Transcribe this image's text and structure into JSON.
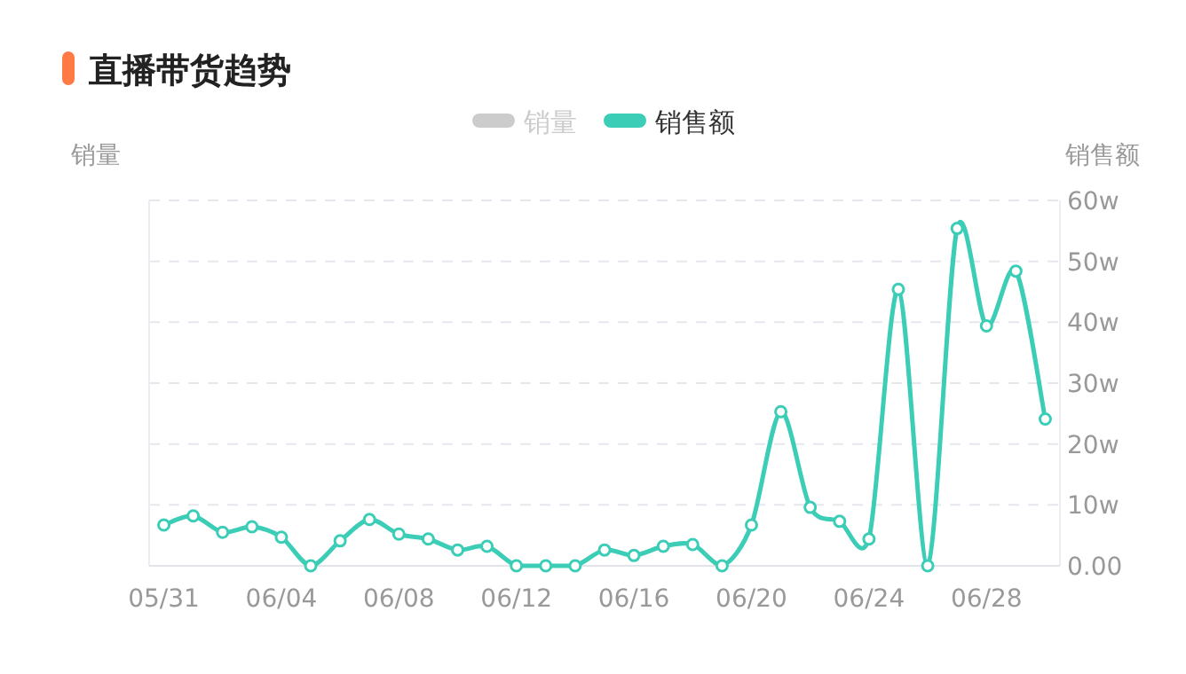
{
  "chart_data": {
    "type": "line",
    "title": "直播带货趋势",
    "ylabel": "销量",
    "y2label": "销售额",
    "categories": [
      "05/31",
      null,
      null,
      null,
      "06/04",
      null,
      null,
      null,
      "06/08",
      null,
      null,
      null,
      "06/12",
      null,
      null,
      null,
      "06/16",
      null,
      null,
      null,
      "06/20",
      null,
      null,
      null,
      "06/24",
      null,
      null,
      null,
      "06/28",
      null,
      null
    ],
    "series": [
      {
        "name": "销量",
        "color": "#cccccc",
        "values": [
          null,
          null,
          null,
          null,
          null,
          null,
          null,
          null,
          null,
          null,
          null,
          null,
          null,
          null,
          null,
          null,
          null,
          null,
          null,
          null,
          null,
          null,
          null,
          null,
          null,
          null,
          null,
          null,
          null,
          null,
          null
        ]
      },
      {
        "name": "销售额",
        "color": "#3ccdb6",
        "axis": "y2",
        "values": [
          6.7,
          8.2,
          5.5,
          6.4,
          4.7,
          0,
          4.1,
          7.6,
          5.2,
          4.4,
          2.6,
          3.2,
          0,
          0,
          0,
          2.6,
          1.7,
          3.2,
          3.5,
          0,
          6.7,
          25.3,
          9.6,
          7.3,
          4.4,
          45.4,
          0,
          55.4,
          39.4,
          48.4,
          24.1
        ]
      }
    ],
    "y2lim": [
      0,
      60
    ],
    "y2ticks": [
      {
        "value": 0,
        "label": "0.00"
      },
      {
        "value": 10,
        "label": "10w"
      },
      {
        "value": 20,
        "label": "20w"
      },
      {
        "value": 30,
        "label": "30w"
      },
      {
        "value": 40,
        "label": "40w"
      },
      {
        "value": 50,
        "label": "50w"
      },
      {
        "value": 60,
        "label": "60w"
      }
    ],
    "grid": "y",
    "legend": "top",
    "marker": "circle",
    "line_style": "solid"
  }
}
